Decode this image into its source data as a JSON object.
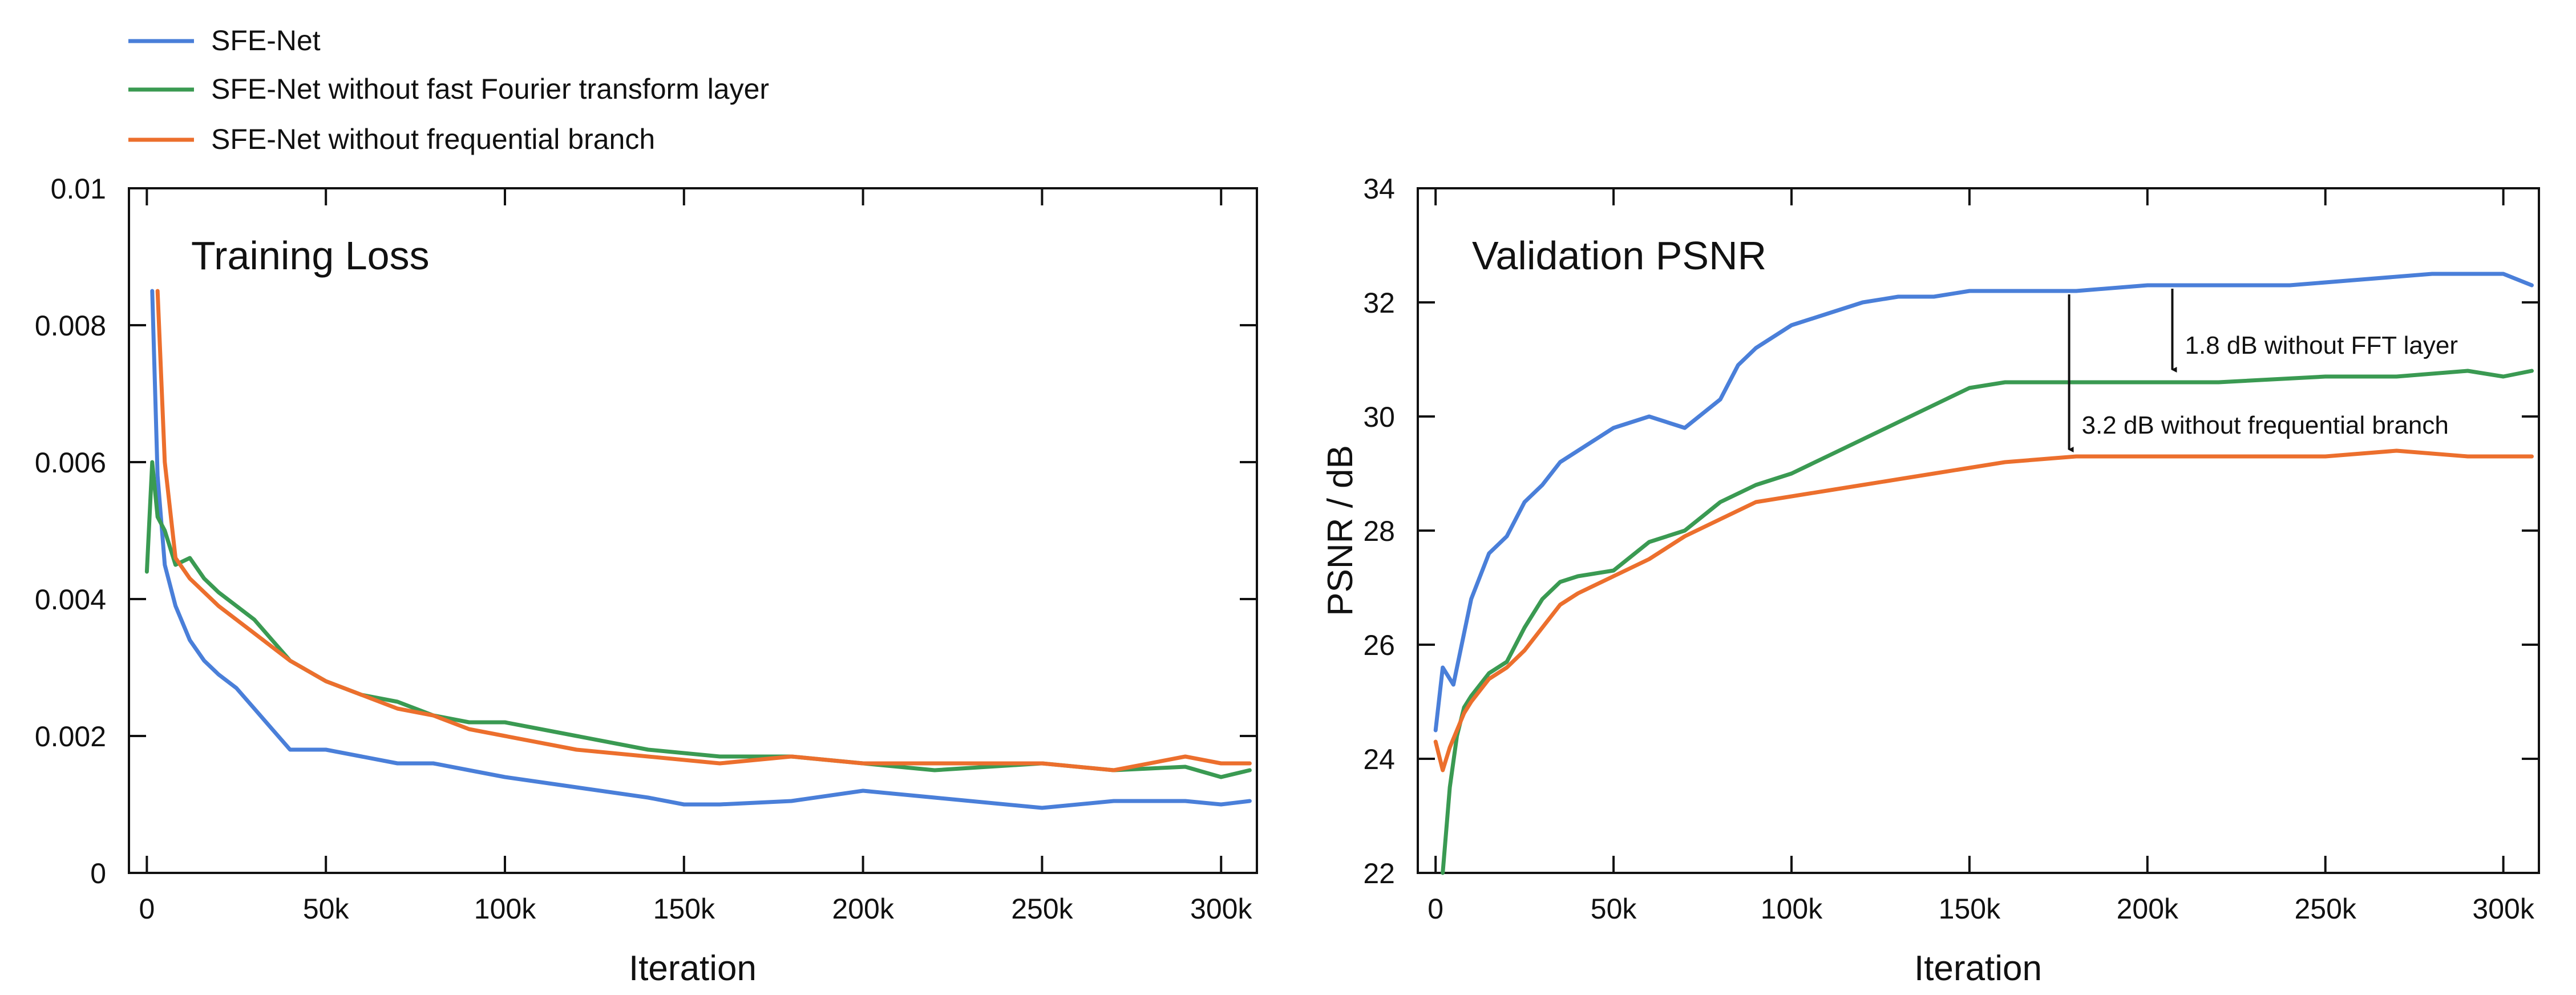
{
  "legend": {
    "items": [
      {
        "label": "SFE-Net",
        "color": "#4a7fd9"
      },
      {
        "label": "SFE-Net without fast Fourier transform layer",
        "color": "#3a9a52"
      },
      {
        "label": "SFE-Net without frequential branch",
        "color": "#ec6f2d"
      }
    ]
  },
  "chart_data": [
    {
      "type": "line",
      "title": "Training Loss",
      "xlabel": "Iteration",
      "ylabel": "",
      "xlim": [
        -5000,
        310000
      ],
      "ylim": [
        0,
        0.01
      ],
      "xticks": [
        0,
        50000,
        100000,
        150000,
        200000,
        250000,
        300000
      ],
      "xtick_labels": [
        "0",
        "50k",
        "100k",
        "150k",
        "200k",
        "250k",
        "300k"
      ],
      "yticks": [
        0,
        0.002,
        0.004,
        0.006,
        0.008,
        0.01
      ],
      "ytick_labels": [
        "0",
        "0.002",
        "0.004",
        "0.006",
        "0.008",
        "0.01"
      ],
      "grid": false,
      "series": [
        {
          "name": "SFE-Net",
          "color": "#4a7fd9",
          "x": [
            1500,
            3000,
            5000,
            8000,
            12000,
            16000,
            20000,
            25000,
            30000,
            35000,
            40000,
            50000,
            60000,
            70000,
            80000,
            90000,
            100000,
            120000,
            140000,
            150000,
            160000,
            180000,
            200000,
            220000,
            250000,
            270000,
            290000,
            300000,
            308000
          ],
          "y": [
            0.0085,
            0.0058,
            0.0045,
            0.0039,
            0.0034,
            0.0031,
            0.0029,
            0.0027,
            0.0024,
            0.0021,
            0.0018,
            0.0018,
            0.0017,
            0.0016,
            0.0016,
            0.0015,
            0.0014,
            0.00125,
            0.0011,
            0.001,
            0.001,
            0.00105,
            0.0012,
            0.0011,
            0.00095,
            0.00105,
            0.00105,
            0.001,
            0.00105
          ]
        },
        {
          "name": "SFE-Net without fast Fourier transform layer",
          "color": "#3a9a52",
          "x": [
            0,
            1500,
            3000,
            5000,
            8000,
            12000,
            16000,
            20000,
            25000,
            30000,
            35000,
            40000,
            50000,
            60000,
            70000,
            80000,
            90000,
            100000,
            120000,
            140000,
            160000,
            180000,
            200000,
            220000,
            250000,
            270000,
            290000,
            300000,
            308000
          ],
          "y": [
            0.0044,
            0.006,
            0.0052,
            0.005,
            0.0045,
            0.0046,
            0.0043,
            0.0041,
            0.0039,
            0.0037,
            0.0034,
            0.0031,
            0.0028,
            0.0026,
            0.0025,
            0.0023,
            0.0022,
            0.0022,
            0.002,
            0.0018,
            0.0017,
            0.0017,
            0.0016,
            0.0015,
            0.0016,
            0.0015,
            0.00155,
            0.0014,
            0.0015
          ]
        },
        {
          "name": "SFE-Net without frequential branch",
          "color": "#ec6f2d",
          "x": [
            3000,
            5000,
            8000,
            12000,
            16000,
            20000,
            25000,
            30000,
            35000,
            40000,
            50000,
            60000,
            70000,
            80000,
            90000,
            100000,
            120000,
            140000,
            160000,
            180000,
            200000,
            220000,
            250000,
            270000,
            290000,
            300000,
            308000
          ],
          "y": [
            0.0085,
            0.006,
            0.0046,
            0.0043,
            0.0041,
            0.0039,
            0.0037,
            0.0035,
            0.0033,
            0.0031,
            0.0028,
            0.0026,
            0.0024,
            0.0023,
            0.0021,
            0.002,
            0.0018,
            0.0017,
            0.0016,
            0.0017,
            0.0016,
            0.0016,
            0.0016,
            0.0015,
            0.0017,
            0.0016,
            0.0016
          ]
        }
      ]
    },
    {
      "type": "line",
      "title": "Validation PSNR",
      "xlabel": "Iteration",
      "ylabel": "PSNR / dB",
      "xlim": [
        -5000,
        310000
      ],
      "ylim": [
        22,
        34
      ],
      "xticks": [
        0,
        50000,
        100000,
        150000,
        200000,
        250000,
        300000
      ],
      "xtick_labels": [
        "0",
        "50k",
        "100k",
        "150k",
        "200k",
        "250k",
        "300k"
      ],
      "yticks": [
        22,
        24,
        26,
        28,
        30,
        32,
        34
      ],
      "ytick_labels": [
        "22",
        "24",
        "26",
        "28",
        "30",
        "32",
        "34"
      ],
      "grid": false,
      "series": [
        {
          "name": "SFE-Net",
          "color": "#4a7fd9",
          "x": [
            0,
            2000,
            5000,
            8000,
            10000,
            15000,
            20000,
            25000,
            30000,
            35000,
            40000,
            50000,
            60000,
            70000,
            80000,
            85000,
            90000,
            100000,
            110000,
            120000,
            130000,
            140000,
            150000,
            160000,
            180000,
            200000,
            220000,
            240000,
            260000,
            280000,
            300000,
            308000
          ],
          "y": [
            24.5,
            25.6,
            25.3,
            26.2,
            26.8,
            27.6,
            27.9,
            28.5,
            28.8,
            29.2,
            29.4,
            29.8,
            30.0,
            29.8,
            30.3,
            30.9,
            31.2,
            31.6,
            31.8,
            32.0,
            32.1,
            32.1,
            32.2,
            32.2,
            32.2,
            32.3,
            32.3,
            32.3,
            32.4,
            32.5,
            32.5,
            32.3
          ]
        },
        {
          "name": "SFE-Net without fast Fourier transform layer",
          "color": "#3a9a52",
          "x": [
            2000,
            4000,
            6000,
            8000,
            10000,
            15000,
            20000,
            25000,
            30000,
            35000,
            40000,
            50000,
            60000,
            70000,
            80000,
            90000,
            100000,
            110000,
            120000,
            130000,
            140000,
            150000,
            160000,
            180000,
            200000,
            220000,
            250000,
            270000,
            290000,
            300000,
            308000
          ],
          "y": [
            22.0,
            23.5,
            24.4,
            24.9,
            25.1,
            25.5,
            25.7,
            26.3,
            26.8,
            27.1,
            27.2,
            27.3,
            27.8,
            28.0,
            28.5,
            28.8,
            29.0,
            29.3,
            29.6,
            29.9,
            30.2,
            30.5,
            30.6,
            30.6,
            30.6,
            30.6,
            30.7,
            30.7,
            30.8,
            30.7,
            30.8
          ]
        },
        {
          "name": "SFE-Net without frequential branch",
          "color": "#ec6f2d",
          "x": [
            0,
            2000,
            4000,
            6000,
            8000,
            10000,
            15000,
            20000,
            25000,
            30000,
            35000,
            40000,
            50000,
            60000,
            70000,
            80000,
            90000,
            100000,
            110000,
            120000,
            130000,
            140000,
            150000,
            160000,
            180000,
            200000,
            220000,
            250000,
            270000,
            290000,
            300000,
            308000
          ],
          "y": [
            24.3,
            23.8,
            24.2,
            24.5,
            24.8,
            25.0,
            25.4,
            25.6,
            25.9,
            26.3,
            26.7,
            26.9,
            27.2,
            27.5,
            27.9,
            28.2,
            28.5,
            28.6,
            28.7,
            28.8,
            28.9,
            29.0,
            29.1,
            29.2,
            29.3,
            29.3,
            29.3,
            29.3,
            29.4,
            29.3,
            29.3,
            29.3
          ]
        }
      ],
      "annotations": [
        {
          "text": "1.8 dB without FFT layer",
          "x_from": 207000,
          "y_from": 32.3,
          "x_to": 207000,
          "y_to": 30.7
        },
        {
          "text": "3.2 dB without frequential branch",
          "x_from": 178000,
          "y_from": 32.2,
          "x_to": 178000,
          "y_to": 29.3
        }
      ]
    }
  ]
}
